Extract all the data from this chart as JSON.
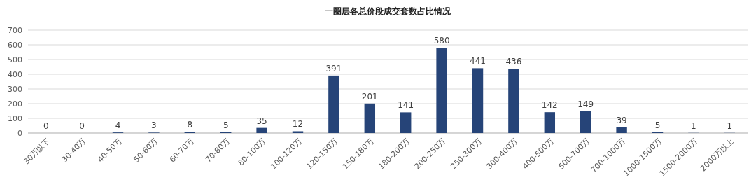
{
  "chart_data": {
    "type": "bar",
    "title": "一圈层各总价段成交套数占比情况",
    "categories": [
      "30万以下",
      "30-40万",
      "40-50万",
      "50-60万",
      "60-70万",
      "70-80万",
      "80-100万",
      "100-120万",
      "120-150万",
      "150-180万",
      "180-200万",
      "200-250万",
      "250-300万",
      "300-400万",
      "400-500万",
      "500-700万",
      "700-1000万",
      "1000-1500万",
      "1500-2000万",
      "2000万以上"
    ],
    "values": [
      0,
      0,
      4,
      3,
      8,
      5,
      35,
      12,
      391,
      201,
      141,
      580,
      441,
      436,
      142,
      149,
      39,
      5,
      1,
      1
    ],
    "color": "#264478",
    "ylim": [
      0,
      700
    ],
    "yticks": [
      0,
      100,
      200,
      300,
      400,
      500,
      600,
      700
    ],
    "grid": "y",
    "data_labels": true
  }
}
